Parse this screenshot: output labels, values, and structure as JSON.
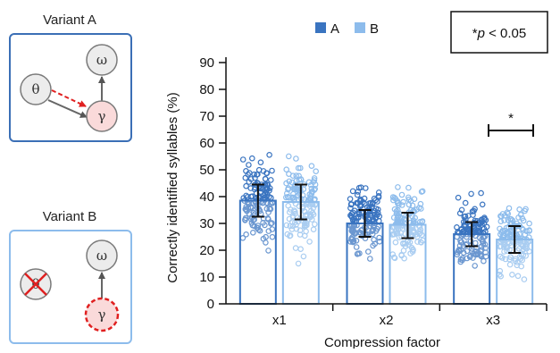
{
  "diagram": {
    "variant_a": {
      "title": "Variant A",
      "nodes": {
        "theta": "θ",
        "omega": "ω",
        "gamma": "γ"
      }
    },
    "variant_b": {
      "title": "Variant B",
      "nodes": {
        "theta": "θ",
        "omega": "ω",
        "gamma": "γ"
      }
    }
  },
  "significance_box": {
    "star": "*",
    "p": "p",
    "rest": " < 0.05"
  },
  "chart_data": {
    "type": "bar",
    "title": "",
    "xlabel": "Compression factor",
    "ylabel": "Correctly identified syllables (%)",
    "categories": [
      "x1",
      "x2",
      "x3"
    ],
    "ylim": [
      0,
      90
    ],
    "yticks": [
      0,
      10,
      20,
      30,
      40,
      50,
      60,
      70,
      80,
      90
    ],
    "legend_position": "top",
    "series": [
      {
        "name": "A",
        "color": "#3a74c0",
        "values": [
          38.5,
          30.0,
          26.0
        ],
        "error_low": [
          32.5,
          25.0,
          21.5
        ],
        "error_high": [
          44.5,
          35.0,
          30.5
        ]
      },
      {
        "name": "B",
        "color": "#8dbcec",
        "values": [
          38.0,
          29.5,
          24.0
        ],
        "error_low": [
          31.5,
          24.5,
          19.0
        ],
        "error_high": [
          44.5,
          34.0,
          29.0
        ]
      }
    ],
    "significance": [
      {
        "category": "x3",
        "label": "*"
      }
    ]
  }
}
